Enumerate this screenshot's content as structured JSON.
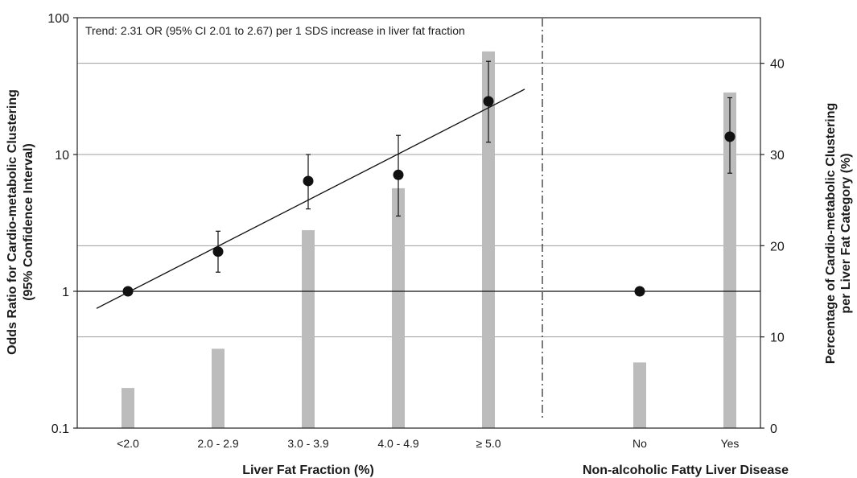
{
  "chart_data": {
    "type": "bar",
    "annotation": "Trend: 2.31 OR (95% CI 2.01 to 2.67) per 1 SDS increase in liver fat fraction",
    "left_axis": {
      "label_line1": "Odds Ratio for Cardio-metabolic Clustering",
      "label_line2": "(95% Confidence Interval)",
      "scale": "log",
      "range": [
        0.1,
        100
      ],
      "ticks": [
        "0.1",
        "1",
        "10",
        "100"
      ],
      "tick_values": [
        0.1,
        1,
        10,
        100
      ]
    },
    "right_axis": {
      "label_line1": "Percentage of Cardio-metabolic Clustering",
      "label_line2": "per Liver Fat Category (%)",
      "scale": "linear",
      "range": [
        0,
        45
      ],
      "ticks": [
        "0",
        "10",
        "20",
        "30",
        "40"
      ],
      "tick_values": [
        0,
        10,
        20,
        30,
        40
      ]
    },
    "groups": [
      {
        "title": "Liver Fat Fraction (%)",
        "categories": [
          "<2.0",
          "2.0 - 2.9",
          "3.0 - 3.9",
          "4.0 - 4.9",
          "≥ 5.0"
        ]
      },
      {
        "title": "Non-alcoholic Fatty Liver Disease",
        "categories": [
          "No",
          "Yes"
        ]
      }
    ],
    "series": [
      {
        "type": "bar",
        "axis": "right",
        "color": "#bcbcbc",
        "values": [
          4.4,
          8.7,
          21.7,
          26.3,
          41.3,
          7.2,
          36.8
        ]
      },
      {
        "type": "point_errorbar",
        "axis": "left",
        "color": "#111111",
        "values": [
          1.0,
          1.95,
          6.4,
          7.1,
          24.5,
          1.0,
          13.5
        ],
        "ci_low": [
          null,
          1.38,
          4.0,
          3.55,
          12.3,
          null,
          7.3
        ],
        "ci_high": [
          null,
          2.75,
          10.0,
          13.8,
          48.0,
          null,
          26.0
        ]
      }
    ],
    "trend_line": {
      "from": 0.75,
      "to": 30
    },
    "reference_value": 1,
    "right_gridlines": [
      10,
      20,
      30,
      40
    ],
    "colors": {
      "bars": "#bcbcbc",
      "points": "#111111",
      "grid": "#9e9e9e",
      "axis": "#222222"
    }
  }
}
